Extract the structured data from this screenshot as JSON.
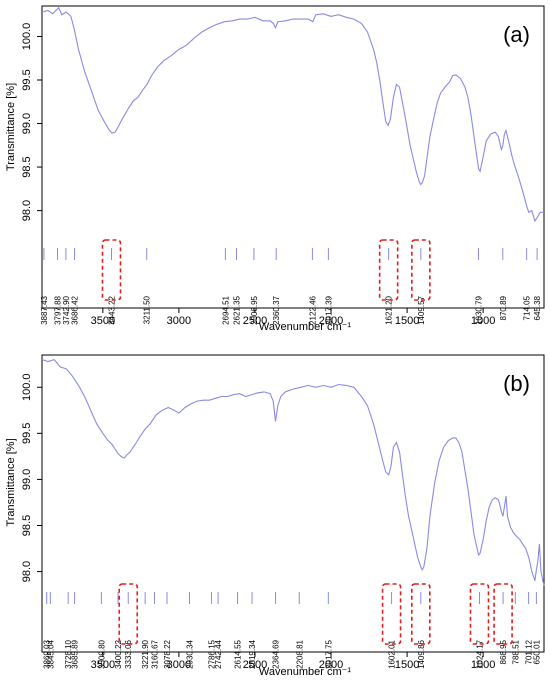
{
  "chart_data": [
    {
      "type": "line",
      "panel_label": "(a)",
      "xlabel": "Wavenumber cm⁻¹",
      "ylabel": "Transmittance [%]",
      "xlim": [
        3900,
        600
      ],
      "ylim": [
        97.8,
        100.35
      ],
      "x_ticks": [
        3500,
        3000,
        2500,
        2000,
        1500,
        1000
      ],
      "y_ticks": [
        98.0,
        98.5,
        99.0,
        99.5,
        100.0
      ],
      "line_color": "#8a8ae6",
      "highlight_color": "#e02020",
      "series": [
        {
          "x": [
            3900,
            3860,
            3830,
            3790,
            3770,
            3740,
            3710,
            3690,
            3660,
            3620,
            3570,
            3530,
            3490,
            3460,
            3440,
            3420,
            3400,
            3370,
            3330,
            3300,
            3270,
            3240,
            3210,
            3180,
            3140,
            3100,
            3050,
            3000,
            2950,
            2900,
            2850,
            2800,
            2750,
            2700,
            2650,
            2600,
            2550,
            2500,
            2450,
            2400,
            2380,
            2365,
            2350,
            2300,
            2250,
            2200,
            2150,
            2120,
            2100,
            2050,
            2000,
            1950,
            1900,
            1850,
            1800,
            1760,
            1720,
            1700,
            1680,
            1660,
            1640,
            1625,
            1610,
            1590,
            1570,
            1550,
            1520,
            1500,
            1480,
            1460,
            1440,
            1420,
            1410,
            1400,
            1385,
            1370,
            1350,
            1320,
            1300,
            1280,
            1250,
            1220,
            1200,
            1180,
            1150,
            1120,
            1100,
            1080,
            1060,
            1040,
            1030,
            1020,
            1000,
            980,
            950,
            920,
            900,
            880,
            870,
            860,
            850,
            830,
            810,
            790,
            770,
            750,
            730,
            714,
            700,
            680,
            660,
            645,
            625,
            600
          ],
          "y": [
            100.28,
            100.3,
            100.26,
            100.33,
            100.25,
            100.28,
            100.23,
            100.1,
            99.85,
            99.6,
            99.35,
            99.15,
            99.02,
            98.93,
            98.89,
            98.9,
            98.96,
            99.06,
            99.18,
            99.26,
            99.3,
            99.38,
            99.45,
            99.55,
            99.65,
            99.72,
            99.78,
            99.85,
            99.9,
            99.98,
            100.05,
            100.1,
            100.14,
            100.17,
            100.18,
            100.2,
            100.2,
            100.22,
            100.18,
            100.18,
            100.15,
            100.1,
            100.17,
            100.18,
            100.2,
            100.2,
            100.2,
            100.17,
            100.25,
            100.26,
            100.23,
            100.25,
            100.22,
            100.2,
            100.15,
            100.05,
            99.85,
            99.7,
            99.5,
            99.25,
            99.02,
            98.98,
            99.05,
            99.3,
            99.45,
            99.42,
            99.15,
            98.95,
            98.75,
            98.6,
            98.45,
            98.33,
            98.3,
            98.32,
            98.4,
            98.6,
            98.85,
            99.1,
            99.25,
            99.35,
            99.42,
            99.48,
            99.55,
            99.56,
            99.52,
            99.42,
            99.3,
            99.1,
            98.85,
            98.6,
            98.48,
            98.45,
            98.62,
            98.8,
            98.88,
            98.9,
            98.85,
            98.7,
            98.75,
            98.88,
            98.92,
            98.78,
            98.62,
            98.5,
            98.4,
            98.28,
            98.16,
            98.05,
            97.98,
            98.0,
            97.88,
            97.92,
            97.98,
            97.98
          ]
        }
      ],
      "peak_labels": [
        {
          "x": 3887.43,
          "label": "3887.43",
          "highlight": false
        },
        {
          "x": 3797.88,
          "label": "3797.88",
          "highlight": false
        },
        {
          "x": 3742.9,
          "label": "3742.90",
          "highlight": false
        },
        {
          "x": 3686.42,
          "label": "3686.42",
          "highlight": false
        },
        {
          "x": 3443.22,
          "label": "3443.22",
          "highlight": true
        },
        {
          "x": 3211.5,
          "label": "3211.50",
          "highlight": false
        },
        {
          "x": 2694.51,
          "label": "2694.51",
          "highlight": false
        },
        {
          "x": 2621.35,
          "label": "2621.35",
          "highlight": false
        },
        {
          "x": 2506.95,
          "label": "2506.95",
          "highlight": false
        },
        {
          "x": 2360.37,
          "label": "2360.37",
          "highlight": false
        },
        {
          "x": 2122.46,
          "label": "2122.46",
          "highlight": false
        },
        {
          "x": 2017.39,
          "label": "2017.39",
          "highlight": false
        },
        {
          "x": 1621.2,
          "label": "1621.20",
          "highlight": true
        },
        {
          "x": 1409.57,
          "label": "1409.57",
          "highlight": true
        },
        {
          "x": 1030.79,
          "label": "1030.79",
          "highlight": false
        },
        {
          "x": 870.89,
          "label": "870.89",
          "highlight": false
        },
        {
          "x": 714.05,
          "label": "714.05",
          "highlight": false
        },
        {
          "x": 645.38,
          "label": "645.38",
          "highlight": false
        }
      ]
    },
    {
      "type": "line",
      "panel_label": "(b)",
      "xlabel": "Wavenumber cm⁻¹",
      "ylabel": "Transmittance [%]",
      "xlim": [
        3900,
        600
      ],
      "ylim": [
        97.8,
        100.35
      ],
      "x_ticks": [
        3500,
        3000,
        2500,
        2000,
        1500,
        1000
      ],
      "y_ticks": [
        98.0,
        98.5,
        99.0,
        99.5,
        100.0
      ],
      "line_color": "#8a8ae6",
      "highlight_color": "#e02020",
      "series": [
        {
          "x": [
            3900,
            3860,
            3820,
            3780,
            3740,
            3700,
            3660,
            3620,
            3580,
            3540,
            3500,
            3470,
            3440,
            3420,
            3400,
            3380,
            3360,
            3340,
            3320,
            3300,
            3280,
            3250,
            3220,
            3190,
            3150,
            3110,
            3070,
            3030,
            3000,
            2960,
            2920,
            2880,
            2840,
            2800,
            2760,
            2720,
            2680,
            2640,
            2600,
            2560,
            2520,
            2480,
            2440,
            2400,
            2380,
            2365,
            2350,
            2330,
            2300,
            2250,
            2200,
            2150,
            2100,
            2050,
            2000,
            1950,
            1900,
            1850,
            1800,
            1760,
            1720,
            1690,
            1660,
            1640,
            1620,
            1605,
            1590,
            1570,
            1550,
            1530,
            1510,
            1490,
            1470,
            1450,
            1430,
            1410,
            1400,
            1390,
            1370,
            1350,
            1320,
            1290,
            1260,
            1230,
            1200,
            1180,
            1160,
            1140,
            1120,
            1100,
            1080,
            1060,
            1040,
            1030,
            1020,
            1000,
            980,
            960,
            940,
            920,
            900,
            890,
            880,
            870,
            860,
            850,
            840,
            820,
            800,
            780,
            760,
            740,
            720,
            700,
            690,
            680,
            670,
            660,
            650,
            640,
            630,
            620,
            610,
            600
          ],
          "y": [
            100.3,
            100.28,
            100.3,
            100.22,
            100.2,
            100.12,
            100.02,
            99.9,
            99.75,
            99.6,
            99.5,
            99.43,
            99.38,
            99.33,
            99.28,
            99.25,
            99.23,
            99.27,
            99.3,
            99.35,
            99.4,
            99.48,
            99.55,
            99.6,
            99.7,
            99.75,
            99.78,
            99.75,
            99.72,
            99.78,
            99.82,
            99.85,
            99.86,
            99.86,
            99.88,
            99.9,
            99.9,
            99.92,
            99.93,
            99.9,
            99.92,
            99.94,
            99.95,
            99.93,
            99.85,
            99.63,
            99.8,
            99.9,
            99.95,
            99.98,
            100.0,
            100.02,
            100.0,
            100.02,
            100.0,
            100.03,
            100.02,
            100.0,
            99.9,
            99.8,
            99.6,
            99.4,
            99.2,
            99.08,
            99.05,
            99.15,
            99.35,
            99.4,
            99.3,
            99.05,
            98.8,
            98.6,
            98.45,
            98.3,
            98.15,
            98.05,
            98.02,
            98.05,
            98.25,
            98.6,
            98.95,
            99.2,
            99.35,
            99.42,
            99.45,
            99.45,
            99.4,
            99.3,
            99.1,
            98.9,
            98.65,
            98.4,
            98.25,
            98.18,
            98.2,
            98.35,
            98.55,
            98.7,
            98.78,
            98.8,
            98.78,
            98.72,
            98.65,
            98.6,
            98.7,
            98.82,
            98.6,
            98.48,
            98.42,
            98.38,
            98.35,
            98.3,
            98.25,
            98.15,
            98.08,
            98.0,
            97.95,
            97.9,
            98.02,
            98.12,
            98.3,
            98.0,
            97.92,
            97.85
          ]
        }
      ],
      "peak_labels": [
        {
          "x": 3869.03,
          "label": "3869.03",
          "highlight": false
        },
        {
          "x": 3845.04,
          "label": "3845.04",
          "highlight": false
        },
        {
          "x": 3728.1,
          "label": "3728.10",
          "highlight": false
        },
        {
          "x": 3685.89,
          "label": "3685.89",
          "highlight": false
        },
        {
          "x": 3509.8,
          "label": "3509.80",
          "highlight": false
        },
        {
          "x": 3400.22,
          "label": "3400.22",
          "highlight": false
        },
        {
          "x": 3333.06,
          "label": "3333.06",
          "highlight": true
        },
        {
          "x": 3221.9,
          "label": "3221.90",
          "highlight": false
        },
        {
          "x": 3160.67,
          "label": "3160.67",
          "highlight": false
        },
        {
          "x": 3078.22,
          "label": "3078.22",
          "highlight": false
        },
        {
          "x": 2930.34,
          "label": "2930.34",
          "highlight": false
        },
        {
          "x": 2786.15,
          "label": "2786.15",
          "highlight": false
        },
        {
          "x": 2742.44,
          "label": "2742.44",
          "highlight": false
        },
        {
          "x": 2614.55,
          "label": "2614.55",
          "highlight": false
        },
        {
          "x": 2519.34,
          "label": "2519.34",
          "highlight": false
        },
        {
          "x": 2364.69,
          "label": "2364.69",
          "highlight": false
        },
        {
          "x": 2208.81,
          "label": "2208.81",
          "highlight": false
        },
        {
          "x": 2017.75,
          "label": "2017.75",
          "highlight": false
        },
        {
          "x": 1602.01,
          "label": "1602.01",
          "highlight": true
        },
        {
          "x": 1409.86,
          "label": "1409.86",
          "highlight": true
        },
        {
          "x": 1024.17,
          "label": "1024.17",
          "highlight": true
        },
        {
          "x": 868.95,
          "label": "868.95",
          "highlight": true
        },
        {
          "x": 788.51,
          "label": "788.51",
          "highlight": false
        },
        {
          "x": 701.12,
          "label": "701.12",
          "highlight": false
        },
        {
          "x": 650.01,
          "label": "650.01",
          "highlight": false
        }
      ]
    }
  ]
}
